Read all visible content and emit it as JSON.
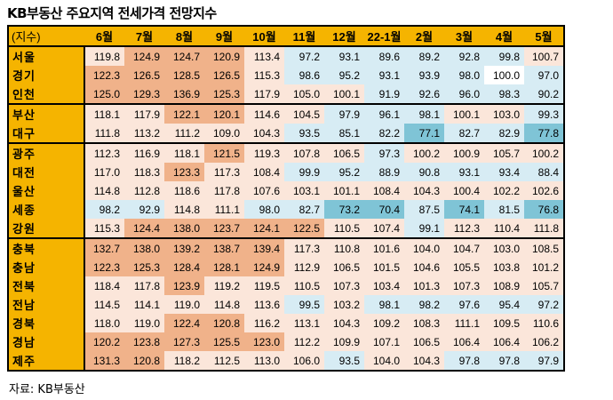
{
  "title": "KB부동산 주요지역 전세가격 전망지수",
  "source": "자료: KB부동산",
  "colors": {
    "header_bg": "#F5B400",
    "low_strong": "#7FC4D6",
    "low": "#D7ECF4",
    "mid": "#FBE6DA",
    "high": "#F0B28A",
    "neutral": "#FFFFFF"
  },
  "chart_data": {
    "type": "heatmap",
    "title": "KB부동산 주요지역 전세가격 전망지수",
    "corner_label": "(지수)",
    "columns": [
      "6월",
      "7월",
      "8월",
      "9월",
      "10월",
      "11월",
      "12월",
      "22-1월",
      "2월",
      "3월",
      "4월",
      "5월"
    ],
    "groups": [
      3,
      5,
      10
    ],
    "rows": [
      {
        "region": "서울",
        "values": [
          119.8,
          124.9,
          124.7,
          120.9,
          113.4,
          97.2,
          93.1,
          89.6,
          89.2,
          92.8,
          99.8,
          100.7
        ]
      },
      {
        "region": "경기",
        "values": [
          122.3,
          126.5,
          128.5,
          126.5,
          115.3,
          98.6,
          95.2,
          93.1,
          93.9,
          98.0,
          100.0,
          97.0
        ]
      },
      {
        "region": "인천",
        "values": [
          125.0,
          129.3,
          136.9,
          125.3,
          117.9,
          105.0,
          100.1,
          91.9,
          92.6,
          96.0,
          98.3,
          90.2
        ]
      },
      {
        "region": "부산",
        "values": [
          118.1,
          117.9,
          122.1,
          120.1,
          114.6,
          104.5,
          97.9,
          96.1,
          98.1,
          100.1,
          103.0,
          99.3
        ]
      },
      {
        "region": "대구",
        "values": [
          111.8,
          113.2,
          111.2,
          109.0,
          104.3,
          93.5,
          85.1,
          82.2,
          77.1,
          82.7,
          82.9,
          77.8
        ]
      },
      {
        "region": "광주",
        "values": [
          112.3,
          116.9,
          118.1,
          121.5,
          119.3,
          107.8,
          106.5,
          97.3,
          100.2,
          100.9,
          105.7,
          100.2
        ]
      },
      {
        "region": "대전",
        "values": [
          117.0,
          118.3,
          123.3,
          117.3,
          108.4,
          99.9,
          95.2,
          88.9,
          90.8,
          93.1,
          93.4,
          88.4
        ]
      },
      {
        "region": "울산",
        "values": [
          114.8,
          112.8,
          118.6,
          117.8,
          107.6,
          103.1,
          101.1,
          108.4,
          104.3,
          100.4,
          102.2,
          102.6
        ]
      },
      {
        "region": "세종",
        "values": [
          98.2,
          92.9,
          114.8,
          111.1,
          98.0,
          82.7,
          73.2,
          70.4,
          87.5,
          74.1,
          81.5,
          76.8
        ]
      },
      {
        "region": "강원",
        "values": [
          115.3,
          124.4,
          138.0,
          123.7,
          124.1,
          122.5,
          110.5,
          107.4,
          99.1,
          112.3,
          110.4,
          111.8
        ]
      },
      {
        "region": "충북",
        "values": [
          132.7,
          138.0,
          139.2,
          138.7,
          139.4,
          117.3,
          110.8,
          101.6,
          104.0,
          104.7,
          103.0,
          108.5
        ]
      },
      {
        "region": "충남",
        "values": [
          122.3,
          125.3,
          128.4,
          128.1,
          124.9,
          112.9,
          106.5,
          101.5,
          104.6,
          105.5,
          103.8,
          101.2
        ]
      },
      {
        "region": "전북",
        "values": [
          118.4,
          117.8,
          123.9,
          119.2,
          119.5,
          110.5,
          107.3,
          103.4,
          101.3,
          107.3,
          108.9,
          105.7
        ]
      },
      {
        "region": "전남",
        "values": [
          114.5,
          114.1,
          119.0,
          114.8,
          113.6,
          99.5,
          103.2,
          98.1,
          98.2,
          97.6,
          95.4,
          97.2
        ]
      },
      {
        "region": "경북",
        "values": [
          118.0,
          119.0,
          122.4,
          120.8,
          116.2,
          113.1,
          104.3,
          109.2,
          108.3,
          111.1,
          109.5,
          110.6
        ]
      },
      {
        "region": "경남",
        "values": [
          120.2,
          123.8,
          127.3,
          125.5,
          123.0,
          112.2,
          109.9,
          107.1,
          106.5,
          106.4,
          106.4,
          106.2
        ]
      },
      {
        "region": "제주",
        "values": [
          131.3,
          120.8,
          118.2,
          112.5,
          113.0,
          106.0,
          93.5,
          104.0,
          104.3,
          97.8,
          97.8,
          97.9
        ]
      }
    ]
  }
}
